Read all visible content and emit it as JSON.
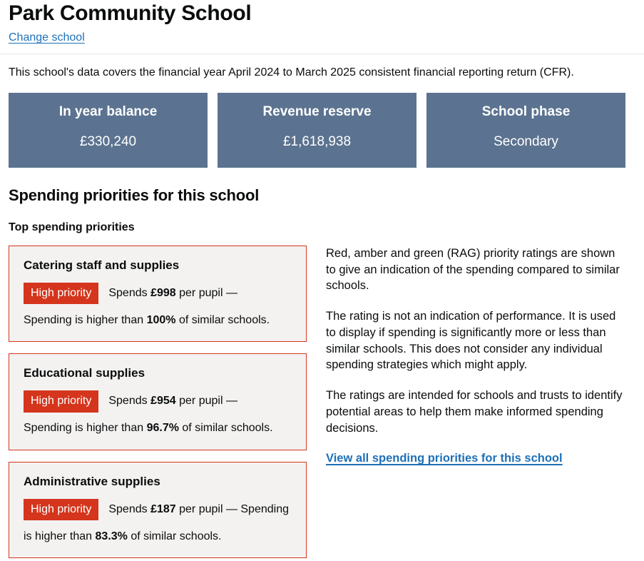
{
  "page": {
    "title": "Park Community School",
    "change_school_link": "Change school",
    "intro": "This school's data covers the financial year April 2024 to March 2025 consistent financial reporting return (CFR)."
  },
  "tiles": [
    {
      "label": "In year balance",
      "value": "£330,240"
    },
    {
      "label": "Revenue reserve",
      "value": "£1,618,938"
    },
    {
      "label": "School phase",
      "value": "Secondary"
    }
  ],
  "spending": {
    "heading": "Spending priorities for this school",
    "subheading": "Top spending priorities",
    "cards": [
      {
        "title": "Catering staff and supplies",
        "badge": "High priority",
        "runs": [
          {
            "t": "Spends "
          },
          {
            "t": "£998",
            "b": true
          },
          {
            "t": " per pupil —"
          },
          {
            "t": "Spending is higher than ",
            "br": true
          },
          {
            "t": "100%",
            "b": true
          },
          {
            "t": " of similar schools."
          }
        ]
      },
      {
        "title": "Educational supplies",
        "badge": "High priority",
        "runs": [
          {
            "t": "Spends "
          },
          {
            "t": "£954",
            "b": true
          },
          {
            "t": " per pupil —"
          },
          {
            "t": "Spending is higher than ",
            "br": true
          },
          {
            "t": "96.7%",
            "b": true
          },
          {
            "t": " of similar schools."
          }
        ]
      },
      {
        "title": "Administrative supplies",
        "badge": "High priority",
        "runs": [
          {
            "t": "Spends "
          },
          {
            "t": "£187",
            "b": true
          },
          {
            "t": " per pupil — Spending "
          },
          {
            "t": "is higher than ",
            "br": true
          },
          {
            "t": "83.3%",
            "b": true
          },
          {
            "t": " of similar schools."
          }
        ]
      }
    ],
    "rag": {
      "p1": "Red, amber and green (RAG) priority ratings are shown to give an indication of the spending compared to similar schools.",
      "p2": "The rating is not an indication of performance. It is used to display if spending is significantly more or less than similar schools. This does not consider any individual spending strategies which might apply.",
      "p3": "The ratings are intended for schools and trusts to identify potential areas to help them make informed spending decisions.",
      "link": "View all spending priorities for this school"
    }
  },
  "colors": {
    "tile_bg": "#5b7390",
    "badge_bg": "#d4351c",
    "card_border": "#d4351c",
    "card_bg": "#f3f2f1",
    "link": "#1d70b8",
    "text": "#0b0c0c"
  }
}
